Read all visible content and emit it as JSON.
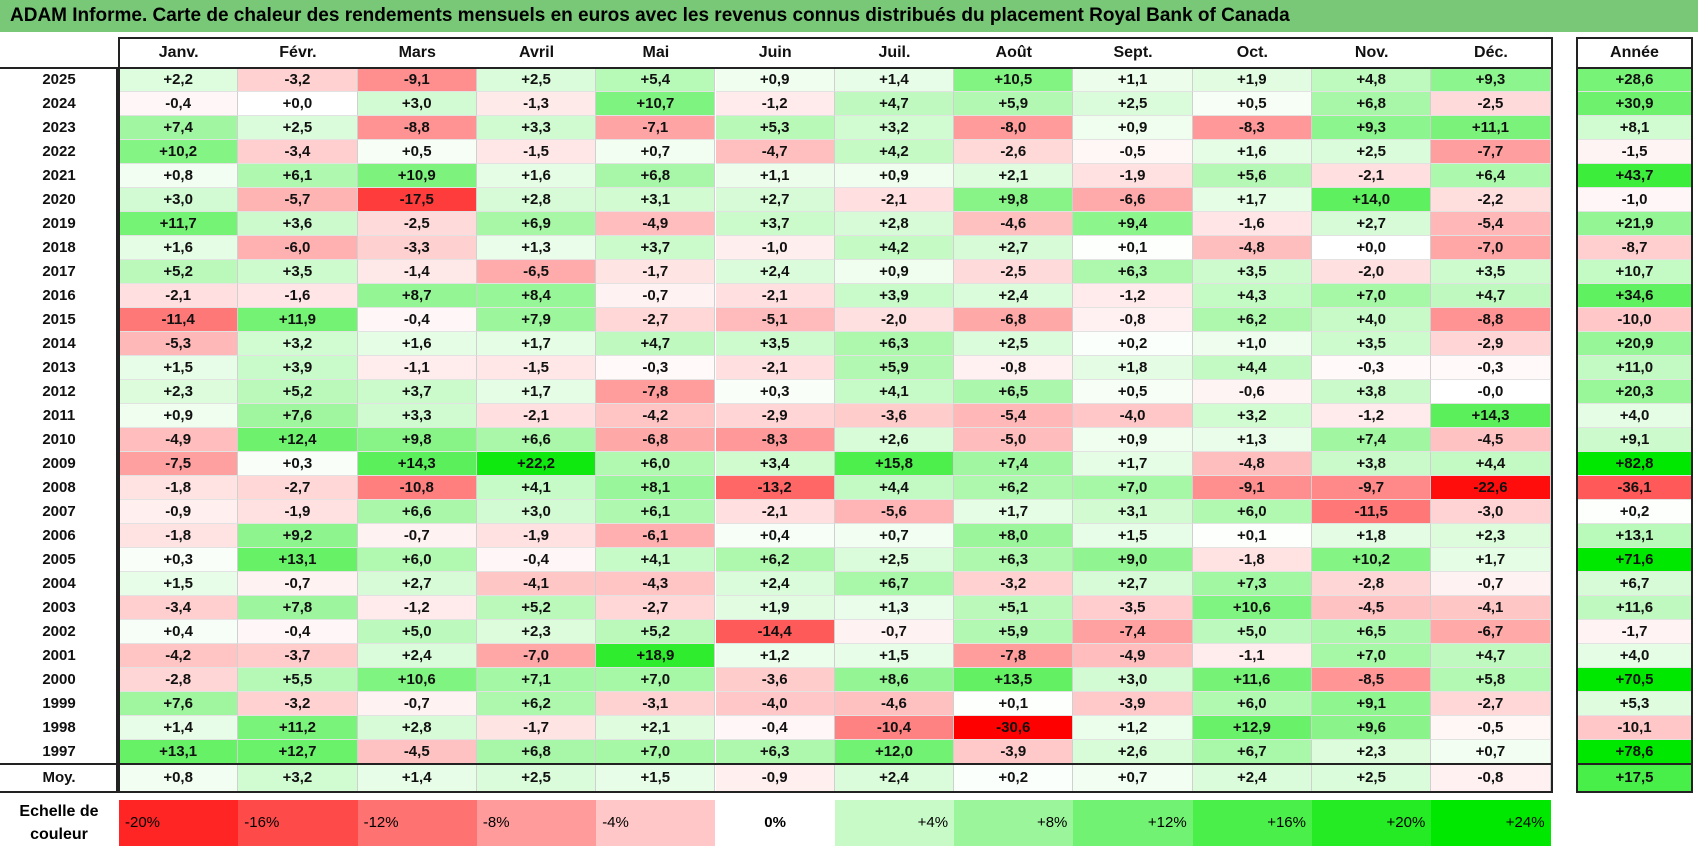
{
  "title": "ADAM Informe. Carte de chaleur des rendements mensuels en euros avec les revenus connus distribués du placement Royal Bank of Canada",
  "chart_data": {
    "type": "heatmap",
    "columns": [
      "Janv.",
      "Févr.",
      "Mars",
      "Avril",
      "Mai",
      "Juin",
      "Juil.",
      "Août",
      "Sept.",
      "Oct.",
      "Nov.",
      "Déc."
    ],
    "annual_header": "Année",
    "rows": [
      {
        "year": "2025",
        "values": [
          "+2,2",
          "-3,2",
          "-9,1",
          "+2,5",
          "+5,4",
          "+0,9",
          "+1,4",
          "+10,5",
          "+1,1",
          "+1,9",
          "+4,8",
          "+9,3"
        ],
        "annual": "+28,6"
      },
      {
        "year": "2024",
        "values": [
          "-0,4",
          "+0,0",
          "+3,0",
          "-1,3",
          "+10,7",
          "-1,2",
          "+4,7",
          "+5,9",
          "+2,5",
          "+0,5",
          "+6,8",
          "-2,5"
        ],
        "annual": "+30,9"
      },
      {
        "year": "2023",
        "values": [
          "+7,4",
          "+2,5",
          "-8,8",
          "+3,3",
          "-7,1",
          "+5,3",
          "+3,2",
          "-8,0",
          "+0,9",
          "-8,3",
          "+9,3",
          "+11,1"
        ],
        "annual": "+8,1"
      },
      {
        "year": "2022",
        "values": [
          "+10,2",
          "-3,4",
          "+0,5",
          "-1,5",
          "+0,7",
          "-4,7",
          "+4,2",
          "-2,6",
          "-0,5",
          "+1,6",
          "+2,5",
          "-7,7"
        ],
        "annual": "-1,5"
      },
      {
        "year": "2021",
        "values": [
          "+0,8",
          "+6,1",
          "+10,9",
          "+1,6",
          "+6,8",
          "+1,1",
          "+0,9",
          "+2,1",
          "-1,9",
          "+5,6",
          "-2,1",
          "+6,4"
        ],
        "annual": "+43,7"
      },
      {
        "year": "2020",
        "values": [
          "+3,0",
          "-5,7",
          "-17,5",
          "+2,8",
          "+3,1",
          "+2,7",
          "-2,1",
          "+9,8",
          "-6,6",
          "+1,7",
          "+14,0",
          "-2,2"
        ],
        "annual": "-1,0"
      },
      {
        "year": "2019",
        "values": [
          "+11,7",
          "+3,6",
          "-2,5",
          "+6,9",
          "-4,9",
          "+3,7",
          "+2,8",
          "-4,6",
          "+9,4",
          "-1,6",
          "+2,7",
          "-5,4"
        ],
        "annual": "+21,9"
      },
      {
        "year": "2018",
        "values": [
          "+1,6",
          "-6,0",
          "-3,3",
          "+1,3",
          "+3,7",
          "-1,0",
          "+4,2",
          "+2,7",
          "+0,1",
          "-4,8",
          "+0,0",
          "-7,0"
        ],
        "annual": "-8,7"
      },
      {
        "year": "2017",
        "values": [
          "+5,2",
          "+3,5",
          "-1,4",
          "-6,5",
          "-1,7",
          "+2,4",
          "+0,9",
          "-2,5",
          "+6,3",
          "+3,5",
          "-2,0",
          "+3,5"
        ],
        "annual": "+10,7"
      },
      {
        "year": "2016",
        "values": [
          "-2,1",
          "-1,6",
          "+8,7",
          "+8,4",
          "-0,7",
          "-2,1",
          "+3,9",
          "+2,4",
          "-1,2",
          "+4,3",
          "+7,0",
          "+4,7"
        ],
        "annual": "+34,6"
      },
      {
        "year": "2015",
        "values": [
          "-11,4",
          "+11,9",
          "-0,4",
          "+7,9",
          "-2,7",
          "-5,1",
          "-2,0",
          "-6,8",
          "-0,8",
          "+6,2",
          "+4,0",
          "-8,8"
        ],
        "annual": "-10,0"
      },
      {
        "year": "2014",
        "values": [
          "-5,3",
          "+3,2",
          "+1,6",
          "+1,7",
          "+4,7",
          "+3,5",
          "+6,3",
          "+2,5",
          "+0,2",
          "+1,0",
          "+3,5",
          "-2,9"
        ],
        "annual": "+20,9"
      },
      {
        "year": "2013",
        "values": [
          "+1,5",
          "+3,9",
          "-1,1",
          "-1,5",
          "-0,3",
          "-2,1",
          "+5,9",
          "-0,8",
          "+1,8",
          "+4,4",
          "-0,3",
          "-0,3"
        ],
        "annual": "+11,0"
      },
      {
        "year": "2012",
        "values": [
          "+2,3",
          "+5,2",
          "+3,7",
          "+1,7",
          "-7,8",
          "+0,3",
          "+4,1",
          "+6,5",
          "+0,5",
          "-0,6",
          "+3,8",
          "-0,0"
        ],
        "annual": "+20,3"
      },
      {
        "year": "2011",
        "values": [
          "+0,9",
          "+7,6",
          "+3,3",
          "-2,1",
          "-4,2",
          "-2,9",
          "-3,6",
          "-5,4",
          "-4,0",
          "+3,2",
          "-1,2",
          "+14,3"
        ],
        "annual": "+4,0"
      },
      {
        "year": "2010",
        "values": [
          "-4,9",
          "+12,4",
          "+9,8",
          "+6,6",
          "-6,8",
          "-8,3",
          "+2,6",
          "-5,0",
          "+0,9",
          "+1,3",
          "+7,4",
          "-4,5"
        ],
        "annual": "+9,1"
      },
      {
        "year": "2009",
        "values": [
          "-7,5",
          "+0,3",
          "+14,3",
          "+22,2",
          "+6,0",
          "+3,4",
          "+15,8",
          "+7,4",
          "+1,7",
          "-4,8",
          "+3,8",
          "+4,4"
        ],
        "annual": "+82,8"
      },
      {
        "year": "2008",
        "values": [
          "-1,8",
          "-2,7",
          "-10,8",
          "+4,1",
          "+8,1",
          "-13,2",
          "+4,4",
          "+6,2",
          "+7,0",
          "-9,1",
          "-9,7",
          "-22,6"
        ],
        "annual": "-36,1"
      },
      {
        "year": "2007",
        "values": [
          "-0,9",
          "-1,9",
          "+6,6",
          "+3,0",
          "+6,1",
          "-2,1",
          "-5,6",
          "+1,7",
          "+3,1",
          "+6,0",
          "-11,5",
          "-3,0"
        ],
        "annual": "+0,2"
      },
      {
        "year": "2006",
        "values": [
          "-1,8",
          "+9,2",
          "-0,7",
          "-1,9",
          "-6,1",
          "+0,4",
          "+0,7",
          "+8,0",
          "+1,5",
          "+0,1",
          "+1,8",
          "+2,3"
        ],
        "annual": "+13,1"
      },
      {
        "year": "2005",
        "values": [
          "+0,3",
          "+13,1",
          "+6,0",
          "-0,4",
          "+4,1",
          "+6,2",
          "+2,5",
          "+6,3",
          "+9,0",
          "-1,8",
          "+10,2",
          "+1,7"
        ],
        "annual": "+71,6"
      },
      {
        "year": "2004",
        "values": [
          "+1,5",
          "-0,7",
          "+2,7",
          "-4,1",
          "-4,3",
          "+2,4",
          "+6,7",
          "-3,2",
          "+2,7",
          "+7,3",
          "-2,8",
          "-0,7"
        ],
        "annual": "+6,7"
      },
      {
        "year": "2003",
        "values": [
          "-3,4",
          "+7,8",
          "-1,2",
          "+5,2",
          "-2,7",
          "+1,9",
          "+1,3",
          "+5,1",
          "-3,5",
          "+10,6",
          "-4,5",
          "-4,1"
        ],
        "annual": "+11,6"
      },
      {
        "year": "2002",
        "values": [
          "+0,4",
          "-0,4",
          "+5,0",
          "+2,3",
          "+5,2",
          "-14,4",
          "-0,7",
          "+5,9",
          "-7,4",
          "+5,0",
          "+6,5",
          "-6,7"
        ],
        "annual": "-1,7"
      },
      {
        "year": "2001",
        "values": [
          "-4,2",
          "-3,7",
          "+2,4",
          "-7,0",
          "+18,9",
          "+1,2",
          "+1,5",
          "-7,8",
          "-4,9",
          "-1,1",
          "+7,0",
          "+4,7"
        ],
        "annual": "+4,0"
      },
      {
        "year": "2000",
        "values": [
          "-2,8",
          "+5,5",
          "+10,6",
          "+7,1",
          "+7,0",
          "-3,6",
          "+8,6",
          "+13,5",
          "+3,0",
          "+11,6",
          "-8,5",
          "+5,8"
        ],
        "annual": "+70,5"
      },
      {
        "year": "1999",
        "values": [
          "+7,6",
          "-3,2",
          "-0,7",
          "+6,2",
          "-3,1",
          "-4,0",
          "-4,6",
          "+0,1",
          "-3,9",
          "+6,0",
          "+9,1",
          "-2,7"
        ],
        "annual": "+5,3"
      },
      {
        "year": "1998",
        "values": [
          "+1,4",
          "+11,2",
          "+2,8",
          "-1,7",
          "+2,1",
          "-0,4",
          "-10,4",
          "-30,6",
          "+1,2",
          "+12,9",
          "+9,6",
          "-0,5"
        ],
        "annual": "-10,1"
      },
      {
        "year": "1997",
        "values": [
          "+13,1",
          "+12,7",
          "-4,5",
          "+6,8",
          "+7,0",
          "+6,3",
          "+12,0",
          "-3,9",
          "+2,6",
          "+6,7",
          "+2,3",
          "+0,7"
        ],
        "annual": "+78,6"
      }
    ],
    "average": {
      "label": "Moy.",
      "values": [
        "+0,8",
        "+3,2",
        "+1,4",
        "+2,5",
        "+1,5",
        "-0,9",
        "+2,4",
        "+0,2",
        "+0,7",
        "+2,4",
        "+2,5",
        "-0,8"
      ],
      "annual": "+17,5"
    },
    "scale": {
      "label_line1": "Echelle de",
      "label_line2": "couleur",
      "stops": [
        {
          "label": "-20%",
          "value": -20
        },
        {
          "label": "-16%",
          "value": -16
        },
        {
          "label": "-12%",
          "value": -12
        },
        {
          "label": "-8%",
          "value": -8
        },
        {
          "label": "-4%",
          "value": -4
        },
        {
          "label": "0%",
          "value": 0
        },
        {
          "label": "+4%",
          "value": 4
        },
        {
          "label": "+8%",
          "value": 8
        },
        {
          "label": "+12%",
          "value": 12
        },
        {
          "label": "+16%",
          "value": 16
        },
        {
          "label": "+20%",
          "value": 20
        },
        {
          "label": "+24%",
          "value": 24
        }
      ]
    },
    "colors": {
      "negative_extreme": "#ff0000",
      "neutral": "#ffffff",
      "positive_extreme": "#00e600",
      "title_bar": "#78c878"
    }
  }
}
